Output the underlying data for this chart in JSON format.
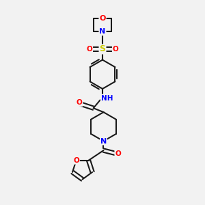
{
  "bg_color": "#f2f2f2",
  "bond_color": "#1a1a1a",
  "colors": {
    "O": "#ff0000",
    "N": "#0000ff",
    "S": "#cccc00",
    "C": "#1a1a1a",
    "H": "#009090"
  }
}
